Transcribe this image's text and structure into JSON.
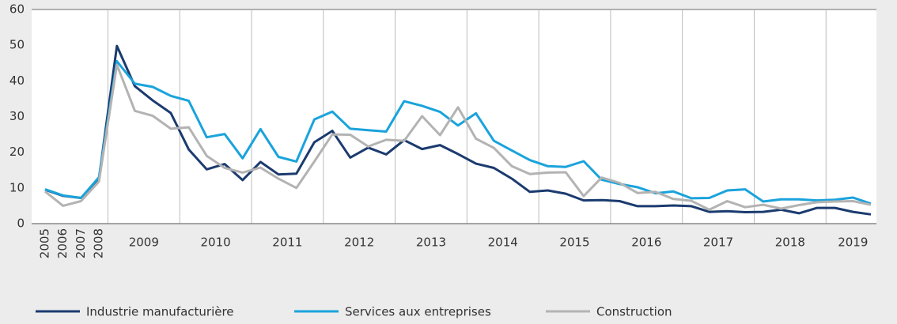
{
  "chart_data": {
    "type": "line",
    "categories": [
      "2005",
      "2006",
      "2007",
      "2008",
      "2009",
      null,
      null,
      null,
      "2010",
      null,
      null,
      null,
      "2011",
      null,
      null,
      null,
      "2012",
      null,
      null,
      null,
      "2013",
      null,
      null,
      null,
      "2014",
      null,
      null,
      null,
      "2015",
      null,
      null,
      null,
      "2016",
      null,
      null,
      null,
      "2017",
      null,
      null,
      null,
      "2018",
      null,
      null,
      null,
      "2019",
      null,
      null
    ],
    "series": [
      {
        "name": "Industrie manufacturière",
        "color": "#1b3b6f",
        "values": [
          9.5,
          7.8,
          7.2,
          12.5,
          49.8,
          38.5,
          34.5,
          31,
          20.8,
          15.2,
          16.7,
          12.2,
          17.3,
          13.8,
          14.0,
          22.8,
          26.0,
          18.5,
          21.3,
          19.4,
          23.4,
          20.9,
          22.0,
          19.5,
          16.8,
          15.6,
          12.6,
          8.9,
          9.3,
          8.4,
          6.5,
          6.6,
          6.3,
          4.9,
          4.9,
          5.1,
          4.9,
          3.3,
          3.5,
          3.2,
          3.3,
          3.9,
          2.9,
          4.4,
          4.4,
          3.3,
          2.6
        ]
      },
      {
        "name": "Services aux entreprises",
        "color": "#1aa3dc",
        "values": [
          9.6,
          7.9,
          7.2,
          13.0,
          45.5,
          39.2,
          38.3,
          35.8,
          34.4,
          24.2,
          25.1,
          18.3,
          26.5,
          18.7,
          17.4,
          29.2,
          31.4,
          26.6,
          26.2,
          25.8,
          34.3,
          33.0,
          31.3,
          27.5,
          30.9,
          23.2,
          20.5,
          17.8,
          16.1,
          15.9,
          17.5,
          12.3,
          11.1,
          10.2,
          8.5,
          9.0,
          7.1,
          7.2,
          9.3,
          9.6,
          6.2,
          6.8,
          6.8,
          6.5,
          6.7,
          7.3,
          5.6
        ]
      },
      {
        "name": "Construction",
        "color": "#b3b3b3",
        "values": [
          9.0,
          5.0,
          6.3,
          11.8,
          44.5,
          31.6,
          30.2,
          26.6,
          27.0,
          19.0,
          15.6,
          14.3,
          15.7,
          12.6,
          10.0,
          17.4,
          25.0,
          24.9,
          21.6,
          23.5,
          23.2,
          30.1,
          24.8,
          32.6,
          23.8,
          21.2,
          16.1,
          13.9,
          14.3,
          14.4,
          7.7,
          12.9,
          11.4,
          8.6,
          8.9,
          6.9,
          6.4,
          3.9,
          6.3,
          4.6,
          5.3,
          4.2,
          5.2,
          6.0,
          6.2,
          6.3,
          5.3
        ]
      }
    ],
    "ylim": [
      0,
      60
    ],
    "yticks": [
      0,
      10,
      20,
      30,
      40,
      50,
      60
    ],
    "grid": true,
    "legend": "bottom"
  }
}
